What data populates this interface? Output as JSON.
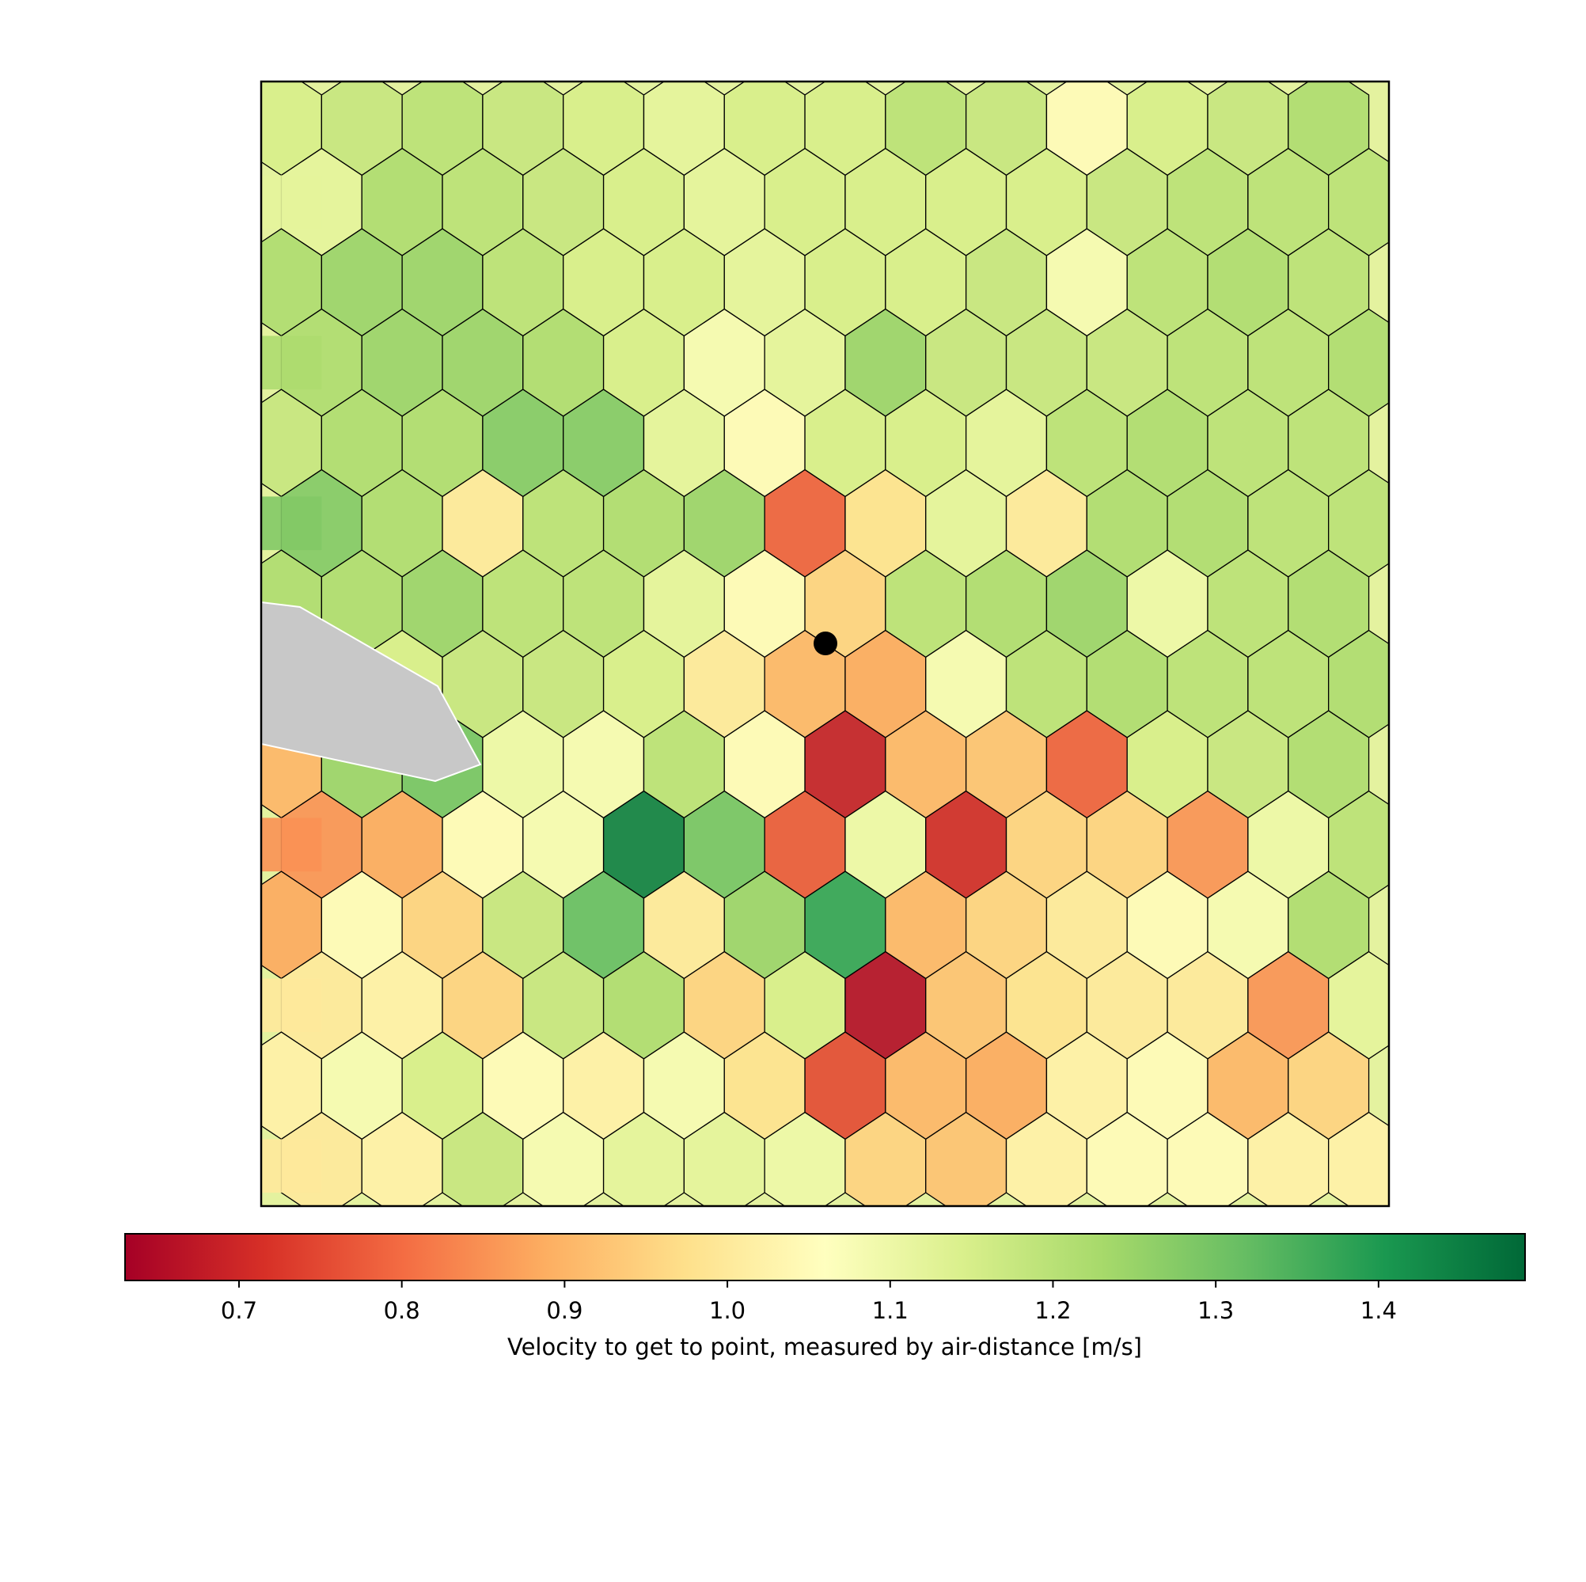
{
  "chart_data": {
    "type": "voronoi_map",
    "colormap": "RdYlGn",
    "clim": [
      0.63,
      1.49
    ],
    "cbar_ticks": [
      0.7,
      0.8,
      0.9,
      {
        "value": 1.0,
        "label": "1.0"
      },
      1.1,
      1.2,
      1.3,
      1.4
    ],
    "cbar_label": "Velocity to get to point, measured by air-distance [m/s]",
    "cells": [
      [
        1.15,
        1.18,
        1.2,
        1.18,
        1.15,
        1.12,
        1.15,
        1.15,
        1.2,
        1.18,
        1.05,
        1.15,
        1.18,
        1.22
      ],
      [
        1.12,
        1.22,
        1.2,
        1.18,
        1.15,
        1.12,
        1.15,
        1.15,
        1.15,
        1.15,
        1.18,
        1.2,
        1.2,
        1.2
      ],
      [
        1.22,
        1.25,
        1.25,
        1.2,
        1.15,
        1.15,
        1.12,
        1.15,
        1.15,
        1.18,
        1.08,
        1.2,
        1.22,
        1.2
      ],
      [
        1.22,
        1.25,
        1.25,
        1.22,
        1.15,
        1.08,
        1.12,
        1.25,
        1.18,
        1.18,
        1.18,
        1.2,
        1.2,
        1.22
      ],
      [
        1.18,
        1.22,
        1.22,
        1.28,
        1.28,
        1.12,
        1.05,
        1.15,
        1.15,
        1.12,
        1.2,
        1.22,
        1.2,
        1.2
      ],
      [
        1.28,
        1.22,
        1.0,
        1.2,
        1.22,
        1.25,
        0.78,
        0.98,
        1.12,
        1.0,
        1.22,
        1.22,
        1.2,
        1.2
      ],
      [
        1.22,
        1.22,
        1.25,
        1.2,
        1.2,
        1.12,
        1.05,
        0.95,
        1.2,
        1.22,
        1.25,
        1.1,
        1.2,
        1.22
      ],
      [
        1.2,
        1.15,
        1.18,
        1.18,
        1.15,
        1.0,
        0.9,
        0.88,
        1.08,
        1.2,
        1.22,
        1.2,
        1.2,
        1.22
      ],
      [
        0.9,
        1.25,
        1.3,
        1.1,
        1.08,
        1.2,
        1.05,
        0.68,
        0.9,
        0.92,
        0.78,
        1.15,
        1.18,
        1.22
      ],
      [
        0.85,
        0.88,
        1.05,
        1.08,
        1.45,
        1.3,
        0.77,
        1.1,
        0.7,
        0.95,
        0.95,
        0.85,
        1.1,
        1.2
      ],
      [
        0.88,
        1.05,
        0.95,
        1.18,
        1.32,
        1.0,
        1.25,
        1.38,
        0.9,
        0.95,
        1.0,
        1.05,
        1.08,
        1.22
      ],
      [
        1.0,
        1.02,
        0.95,
        1.18,
        1.22,
        0.95,
        1.15,
        0.65,
        0.92,
        0.98,
        1.0,
        1.0,
        0.85,
        1.12
      ],
      [
        1.02,
        1.08,
        1.15,
        1.05,
        1.02,
        1.08,
        0.98,
        0.75,
        0.9,
        0.88,
        1.02,
        1.05,
        0.9,
        0.95
      ],
      [
        1.0,
        1.02,
        1.18,
        1.08,
        1.12,
        1.12,
        1.1,
        0.95,
        0.92,
        1.02,
        1.05,
        1.05,
        1.02,
        1.02
      ]
    ]
  }
}
